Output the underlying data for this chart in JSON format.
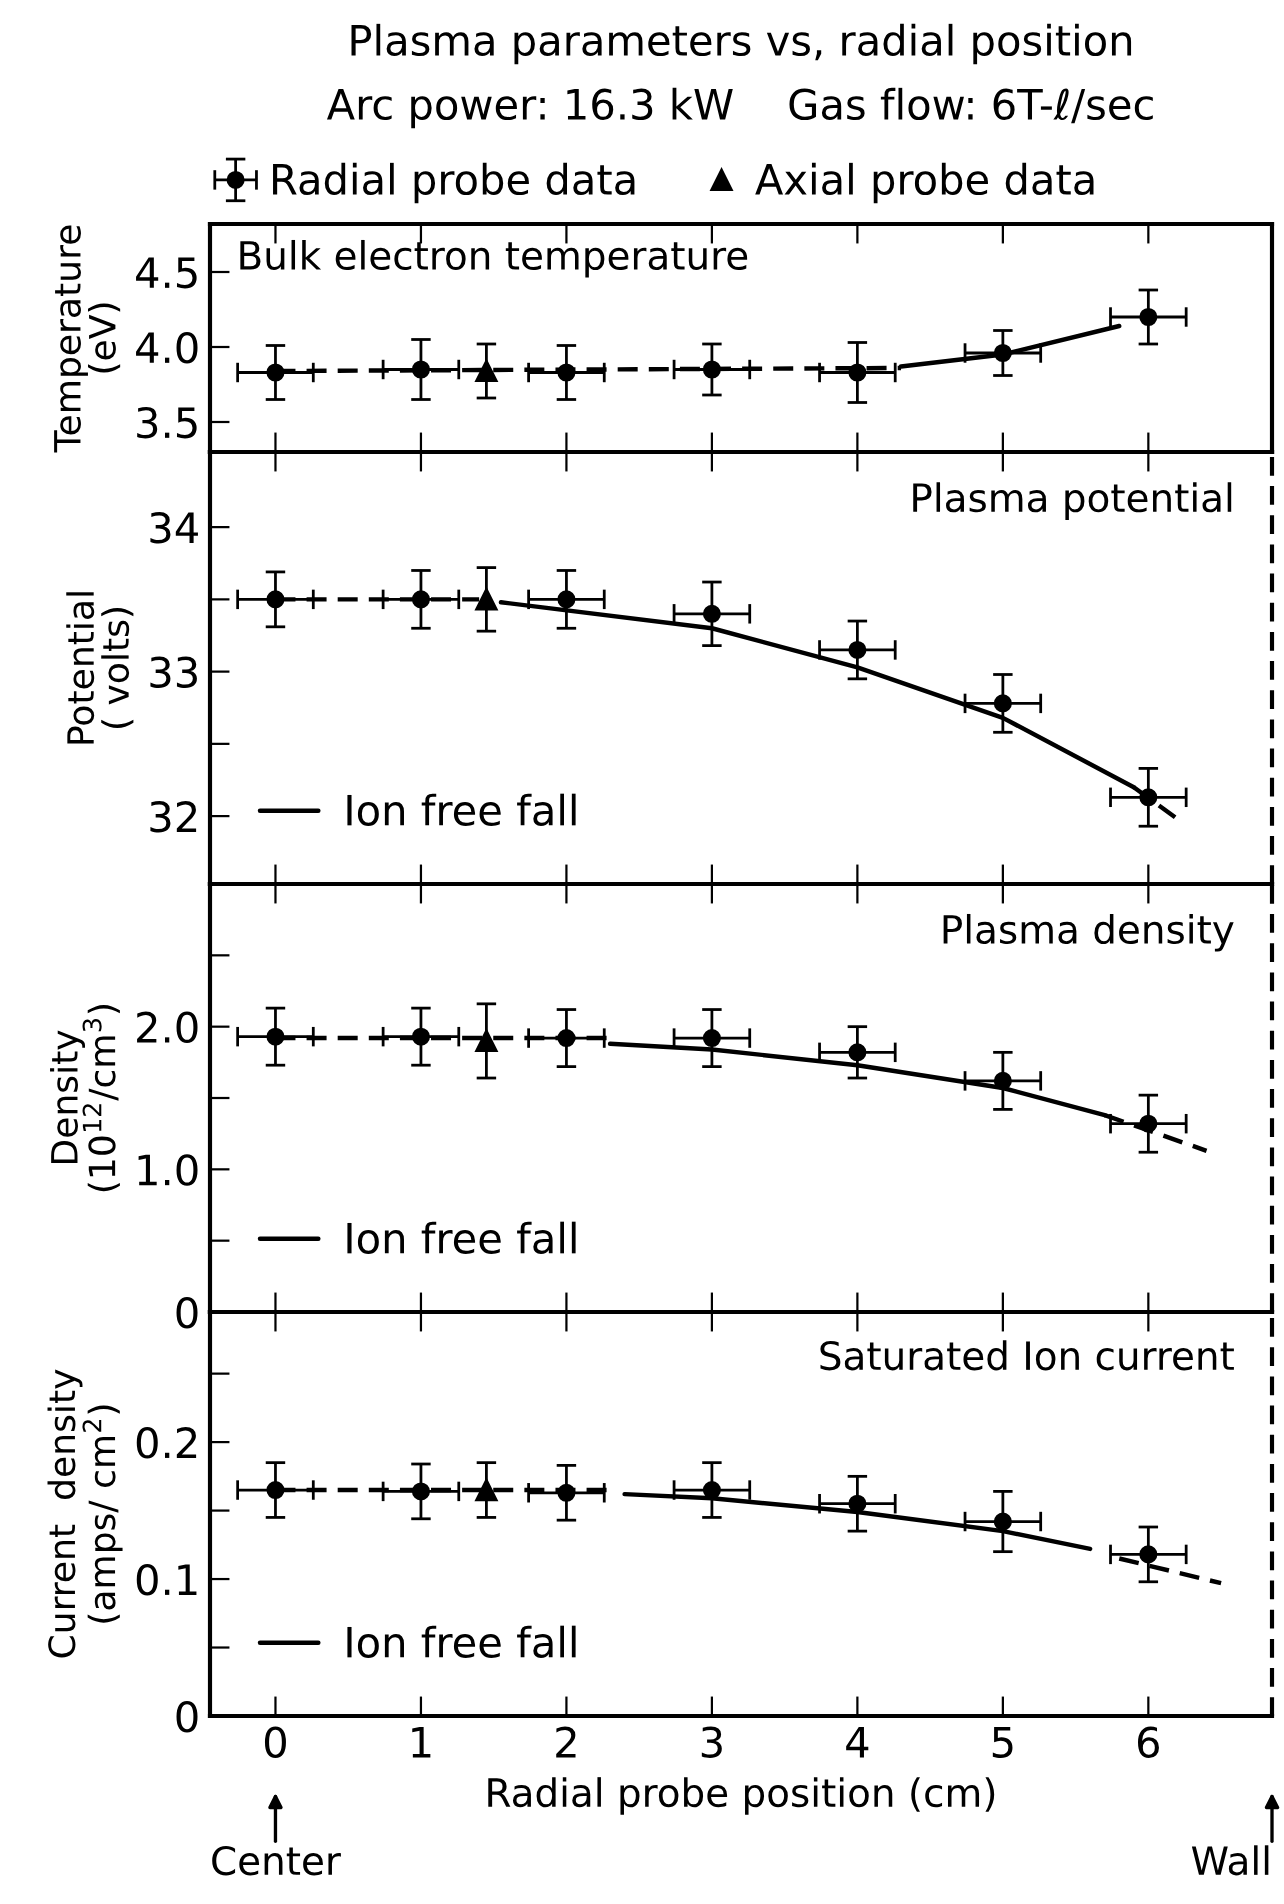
{
  "chart_data": [
    {
      "type": "scatter",
      "title": "Plasma parameters vs, radial position",
      "subtitle": "Arc power: 16.3 kW    Gas flow: 6T-ℓ/sec",
      "ylabel": "Temperature\n(eV)",
      "annotations": [
        "Bulk electron temperature"
      ],
      "legend": "top",
      "tick_labels": "y",
      "xlim": [
        -0.45,
        6.85
      ],
      "xticks": [
        {
          "value": 0,
          "label": null
        },
        {
          "value": 1,
          "label": null
        },
        {
          "value": 2,
          "label": null
        },
        {
          "value": 3,
          "label": null
        },
        {
          "value": 4,
          "label": null
        },
        {
          "value": 5,
          "label": null
        },
        {
          "value": 6,
          "label": null
        }
      ],
      "ylim": [
        3.3,
        4.82
      ],
      "yticks": [
        {
          "value": 3.5,
          "label": "3.5"
        },
        {
          "value": 4.0,
          "label": "4.0"
        },
        {
          "value": 4.5,
          "label": "4.5"
        }
      ],
      "series": [
        {
          "name": "Radial probe data",
          "marker": "circle",
          "color": "#000000",
          "x": [
            0,
            1,
            2,
            3,
            4,
            5,
            6
          ],
          "values": [
            3.83,
            3.85,
            3.83,
            3.85,
            3.83,
            3.96,
            4.2
          ],
          "errors": [
            0.18,
            0.2,
            0.18,
            0.17,
            0.2,
            0.15,
            0.18
          ],
          "xerrors": [
            0.26,
            0.26,
            0.26,
            0.26,
            0.26,
            0.26,
            0.26
          ]
        },
        {
          "name": "Axial probe data",
          "marker": "triangle",
          "color": "#000000",
          "x": [
            1.45
          ],
          "values": [
            3.84
          ],
          "errors": [
            0.18
          ]
        },
        {
          "type": "line",
          "line_style": "dashed",
          "color": "#000000",
          "x": [
            0,
            4.3
          ],
          "values": [
            3.84,
            3.86
          ]
        },
        {
          "type": "line",
          "line_style": "solid",
          "color": "#000000",
          "x": [
            4.3,
            5,
            5.8
          ],
          "values": [
            3.87,
            3.95,
            4.14
          ]
        }
      ]
    },
    {
      "type": "scatter",
      "ylabel": "Potential\n( volts)",
      "annotations": [
        "Plasma potential"
      ],
      "legend": "bottom left",
      "tick_labels": "y",
      "xlim": [
        -0.45,
        6.85
      ],
      "xticks": [
        {
          "value": 0,
          "label": null
        },
        {
          "value": 1,
          "label": null
        },
        {
          "value": 2,
          "label": null
        },
        {
          "value": 3,
          "label": null
        },
        {
          "value": 4,
          "label": null
        },
        {
          "value": 5,
          "label": null
        },
        {
          "value": 6,
          "label": null
        }
      ],
      "ylim": [
        31.53,
        34.52
      ],
      "yticks": [
        {
          "value": 32,
          "label": "32"
        },
        {
          "value": 32.5,
          "label": null
        },
        {
          "value": 33,
          "label": "33"
        },
        {
          "value": 33.5,
          "label": null
        },
        {
          "value": 34,
          "label": "34"
        }
      ],
      "ref_lines": [
        {
          "axis": "x",
          "value": 6.85,
          "line_style": "dashed",
          "color": "#000000"
        }
      ],
      "series": [
        {
          "marker": "circle",
          "color": "#000000",
          "x": [
            0,
            1,
            2,
            3,
            4,
            5,
            6
          ],
          "values": [
            33.5,
            33.5,
            33.5,
            33.4,
            33.15,
            32.78,
            32.13
          ],
          "errors": [
            0.19,
            0.2,
            0.2,
            0.22,
            0.2,
            0.2,
            0.2
          ],
          "xerrors": [
            0.26,
            0.26,
            0.26,
            0.26,
            0.26,
            0.26,
            0.26
          ]
        },
        {
          "marker": "triangle",
          "color": "#000000",
          "x": [
            1.45
          ],
          "values": [
            33.5
          ],
          "errors": [
            0.22
          ]
        },
        {
          "type": "line",
          "line_style": "dashed",
          "color": "#000000",
          "x": [
            0,
            1.4
          ],
          "values": [
            33.5,
            33.5
          ]
        },
        {
          "name": "Ion free fall",
          "type": "line",
          "line_style": "solid",
          "color": "#000000",
          "x": [
            1.55,
            3,
            4,
            5,
            5.9
          ],
          "values": [
            33.48,
            33.3,
            33.03,
            32.68,
            32.2
          ]
        },
        {
          "type": "line",
          "line_style": "dashed",
          "color": "#000000",
          "x": [
            5.9,
            6.2
          ],
          "values": [
            32.2,
            31.98
          ]
        }
      ]
    },
    {
      "type": "scatter",
      "ylabel": "Density\n(10$^{12}$/cm$^{3}$)",
      "annotations": [
        "Plasma density"
      ],
      "legend": "bottom left",
      "tick_labels": "y",
      "xlim": [
        -0.45,
        6.85
      ],
      "xticks": [
        {
          "value": 0,
          "label": null
        },
        {
          "value": 1,
          "label": null
        },
        {
          "value": 2,
          "label": null
        },
        {
          "value": 3,
          "label": null
        },
        {
          "value": 4,
          "label": null
        },
        {
          "value": 5,
          "label": null
        },
        {
          "value": 6,
          "label": null
        }
      ],
      "ylim": [
        0,
        3.0
      ],
      "yticks": [
        {
          "value": 0,
          "label": "0"
        },
        {
          "value": 0.5,
          "label": null
        },
        {
          "value": 1.0,
          "label": "1.0"
        },
        {
          "value": 1.5,
          "label": null
        },
        {
          "value": 2.0,
          "label": "2.0"
        },
        {
          "value": 2.5,
          "label": null
        }
      ],
      "ref_lines": [
        {
          "axis": "x",
          "value": 6.85,
          "line_style": "dashed",
          "color": "#000000"
        }
      ],
      "series": [
        {
          "marker": "circle",
          "color": "#000000",
          "x": [
            0,
            1,
            2,
            3,
            4,
            5,
            6
          ],
          "values": [
            1.93,
            1.93,
            1.92,
            1.92,
            1.82,
            1.62,
            1.32
          ],
          "errors": [
            0.2,
            0.2,
            0.2,
            0.2,
            0.18,
            0.2,
            0.2
          ],
          "xerrors": [
            0.26,
            0.26,
            0.26,
            0.26,
            0.26,
            0.26,
            0.26
          ]
        },
        {
          "marker": "triangle",
          "color": "#000000",
          "x": [
            1.45
          ],
          "values": [
            1.9
          ],
          "errors": [
            0.26
          ]
        },
        {
          "type": "line",
          "line_style": "dashed",
          "color": "#000000",
          "x": [
            0,
            2.3
          ],
          "values": [
            1.92,
            1.92
          ]
        },
        {
          "name": "Ion free fall",
          "type": "line",
          "line_style": "solid",
          "color": "#000000",
          "x": [
            2.3,
            3,
            4,
            5,
            5.7
          ],
          "values": [
            1.88,
            1.84,
            1.73,
            1.57,
            1.38
          ]
        },
        {
          "type": "line",
          "line_style": "dashed",
          "color": "#000000",
          "x": [
            5.7,
            6.4
          ],
          "values": [
            1.38,
            1.13
          ]
        }
      ]
    },
    {
      "type": "scatter",
      "ylabel": "Current  density\n(amps/ cm$^{2}$)",
      "xlabel": "Radial probe position (cm)",
      "annotations": [
        "Saturated Ion current",
        "Center",
        "Wall"
      ],
      "legend": "bottom left",
      "xlim": [
        -0.45,
        6.85
      ],
      "xticks": [
        0,
        1,
        2,
        3,
        4,
        5,
        6
      ],
      "ylim": [
        0,
        0.295
      ],
      "yticks": [
        {
          "value": 0,
          "label": "0"
        },
        {
          "value": 0.05,
          "label": null
        },
        {
          "value": 0.1,
          "label": "0.1"
        },
        {
          "value": 0.15,
          "label": null
        },
        {
          "value": 0.2,
          "label": "0.2"
        },
        {
          "value": 0.25,
          "label": null
        }
      ],
      "ref_lines": [
        {
          "axis": "x",
          "value": 6.85,
          "line_style": "dashed",
          "color": "#000000"
        }
      ],
      "series": [
        {
          "marker": "circle",
          "color": "#000000",
          "x": [
            0,
            1,
            2,
            3,
            4,
            5,
            6
          ],
          "values": [
            0.165,
            0.164,
            0.163,
            0.165,
            0.155,
            0.142,
            0.118
          ],
          "errors": [
            0.02,
            0.02,
            0.02,
            0.02,
            0.02,
            0.022,
            0.02
          ],
          "xerrors": [
            0.26,
            0.26,
            0.26,
            0.26,
            0.26,
            0.26,
            0.26
          ]
        },
        {
          "marker": "triangle",
          "color": "#000000",
          "x": [
            1.45
          ],
          "values": [
            0.165
          ],
          "errors": [
            0.02
          ]
        },
        {
          "type": "line",
          "line_style": "dashed",
          "color": "#000000",
          "x": [
            0,
            2.3
          ],
          "values": [
            0.165,
            0.165
          ]
        },
        {
          "name": "Ion free fall",
          "type": "line",
          "line_style": "solid",
          "color": "#000000",
          "x": [
            2.4,
            3,
            4,
            5,
            5.6
          ],
          "values": [
            0.162,
            0.159,
            0.149,
            0.135,
            0.122
          ]
        },
        {
          "type": "line",
          "line_style": "dashed",
          "color": "#000000",
          "x": [
            5.8,
            6.5
          ],
          "values": [
            0.115,
            0.097
          ]
        }
      ]
    }
  ]
}
